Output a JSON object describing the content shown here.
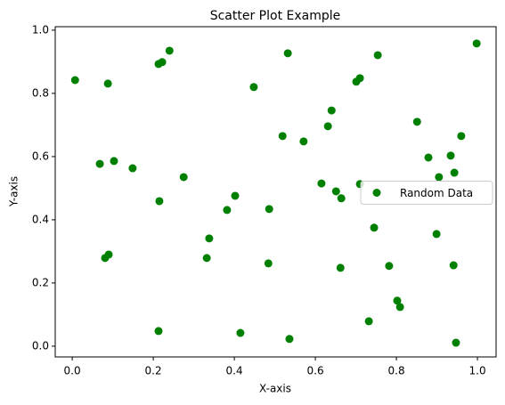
{
  "chart_data": {
    "type": "scatter",
    "title": "Scatter Plot Example",
    "x_label": "X-axis",
    "y_label": "Y-axis",
    "series": [
      {
        "name": "Random Data",
        "color": "green",
        "x": [
          0.007,
          0.088,
          0.213,
          0.222,
          0.24,
          0.532,
          0.754,
          0.998,
          0.448,
          0.71,
          0.701,
          0.64,
          0.851,
          0.631,
          0.519,
          0.571,
          0.96,
          0.879,
          0.934,
          0.068,
          0.103,
          0.149,
          0.275,
          0.905,
          0.943,
          0.615,
          0.71,
          0.651,
          0.664,
          0.402,
          0.215,
          0.382,
          0.486,
          0.745,
          0.899,
          0.338,
          0.09,
          0.081,
          0.332,
          0.484,
          0.782,
          0.941,
          0.662,
          0.802,
          0.809,
          0.732,
          0.213,
          0.415,
          0.536,
          0.947
        ],
        "y": [
          0.842,
          0.831,
          0.893,
          0.899,
          0.935,
          0.927,
          0.921,
          0.958,
          0.82,
          0.848,
          0.837,
          0.746,
          0.71,
          0.696,
          0.665,
          0.648,
          0.665,
          0.597,
          0.603,
          0.577,
          0.586,
          0.563,
          0.535,
          0.535,
          0.549,
          0.515,
          0.513,
          0.49,
          0.468,
          0.476,
          0.459,
          0.431,
          0.434,
          0.375,
          0.355,
          0.341,
          0.29,
          0.279,
          0.279,
          0.262,
          0.254,
          0.256,
          0.248,
          0.144,
          0.124,
          0.079,
          0.048,
          0.042,
          0.023,
          0.011
        ]
      }
    ],
    "xlim": [
      -0.042,
      1.046
    ],
    "ylim": [
      -0.034,
      1.011
    ],
    "xticks": [
      {
        "value": 0,
        "label": "0.0"
      },
      0.2,
      0.4,
      0.6,
      0.8,
      {
        "value": 1,
        "label": "1.0"
      }
    ],
    "yticks": [
      {
        "value": 0,
        "label": "0.0"
      },
      0.2,
      0.4,
      0.6,
      0.8,
      {
        "value": 1,
        "label": "1.0"
      }
    ],
    "legend": "center right"
  }
}
